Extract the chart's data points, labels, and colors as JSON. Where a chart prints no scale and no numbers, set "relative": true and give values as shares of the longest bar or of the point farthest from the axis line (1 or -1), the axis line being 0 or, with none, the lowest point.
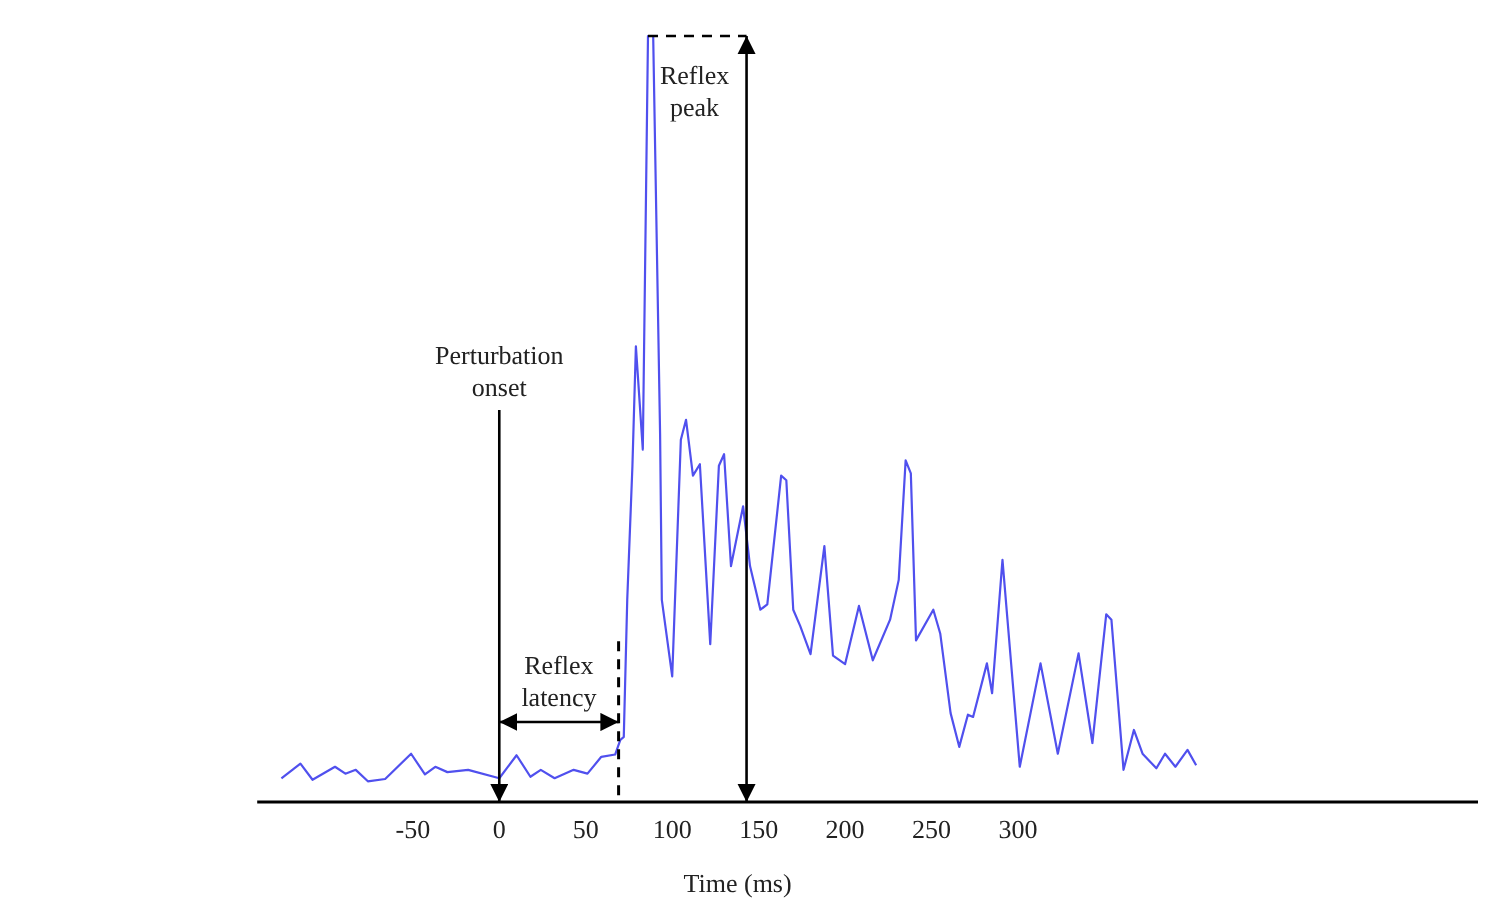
{
  "chart_data": {
    "type": "line",
    "relative": true,
    "xlabel": "Time (ms)",
    "xlim": [
      -140,
      566
    ],
    "xticks": [
      -50,
      0,
      50,
      100,
      150,
      200,
      250,
      300
    ],
    "grid": false,
    "line_style": "solid",
    "x": [
      -126,
      -115,
      -108,
      -95,
      -89,
      -83,
      -76,
      -66,
      -51,
      -43,
      -37,
      -30,
      -18,
      0,
      10,
      18,
      24,
      32,
      43,
      51,
      59,
      67,
      70,
      72,
      74,
      77,
      79,
      83,
      86,
      89,
      93,
      94,
      100,
      105,
      108,
      112,
      116,
      122,
      127,
      130,
      134,
      141,
      145,
      151,
      155,
      163,
      166,
      170,
      174,
      180,
      188,
      193,
      200,
      208,
      216,
      226,
      231,
      235,
      238,
      241,
      251,
      255,
      261,
      266,
      271,
      274,
      282,
      285,
      291,
      301,
      313,
      323,
      335,
      343,
      351,
      354,
      361,
      367,
      372,
      380,
      385,
      391,
      398,
      403
    ],
    "series": [
      {
        "color": "#5050ee",
        "values": [
          0.031,
          0.05,
          0.029,
          0.046,
          0.037,
          0.042,
          0.027,
          0.03,
          0.063,
          0.036,
          0.046,
          0.039,
          0.042,
          0.031,
          0.061,
          0.033,
          0.042,
          0.031,
          0.042,
          0.037,
          0.059,
          0.062,
          0.081,
          0.085,
          0.264,
          0.439,
          0.595,
          0.46,
          1,
          1,
          0.48,
          0.264,
          0.164,
          0.473,
          0.499,
          0.426,
          0.441,
          0.206,
          0.439,
          0.454,
          0.308,
          0.386,
          0.308,
          0.251,
          0.258,
          0.426,
          0.42,
          0.251,
          0.23,
          0.193,
          0.334,
          0.191,
          0.18,
          0.256,
          0.185,
          0.238,
          0.29,
          0.446,
          0.429,
          0.211,
          0.251,
          0.22,
          0.116,
          0.072,
          0.114,
          0.111,
          0.181,
          0.142,
          0.316,
          0.046,
          0.181,
          0.063,
          0.194,
          0.077,
          0.245,
          0.238,
          0.042,
          0.094,
          0.063,
          0.044,
          0.063,
          0.046,
          0.068,
          0.048
        ]
      }
    ],
    "ref_lines": [
      {
        "axis": "x",
        "value": 0,
        "label": "Perturbation onset",
        "color": "#000000",
        "line_style": "solid"
      },
      {
        "axis": "x",
        "value": 69,
        "color": "#000000",
        "line_style": "dashed"
      },
      {
        "axis": "x",
        "value": 143,
        "label": "Reflex peak",
        "color": "#000000",
        "line_style": "solid"
      }
    ],
    "annotations": [
      "Reflex latency"
    ]
  }
}
